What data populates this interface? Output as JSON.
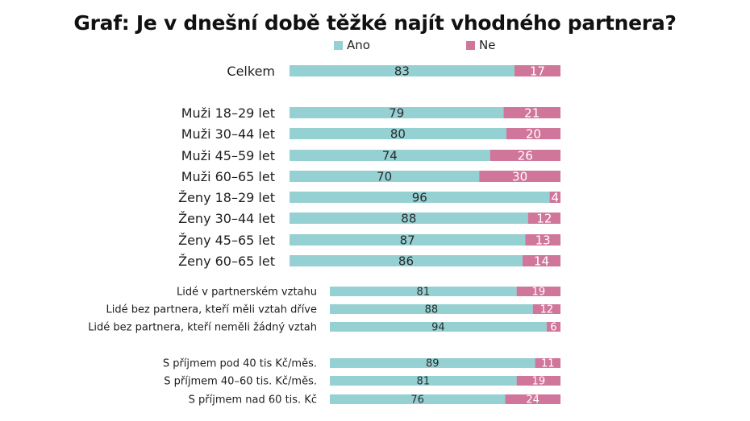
{
  "title": "Graf: Je v dnešní době těžké najít vhodného partnera?",
  "legend": [
    {
      "label": "Ano",
      "color": "#95d0d2"
    },
    {
      "label": "Ne",
      "color": "#d0769b"
    }
  ],
  "chart_data": {
    "type": "bar",
    "orientation": "horizontal",
    "stacked": true,
    "percent": true,
    "series": [
      {
        "name": "Ano",
        "color": "#95d0d2"
      },
      {
        "name": "Ne",
        "color": "#d0769b"
      }
    ],
    "groups": [
      {
        "rows": [
          {
            "label": "Celkem",
            "ano": 83,
            "ne": 17
          }
        ]
      },
      {
        "rows": [
          {
            "label": "Muži 18–29 let",
            "ano": 79,
            "ne": 21
          },
          {
            "label": "Muži 30–44 let",
            "ano": 80,
            "ne": 20
          },
          {
            "label": "Muži 45–59 let",
            "ano": 74,
            "ne": 26
          },
          {
            "label": "Muži 60–65 let",
            "ano": 70,
            "ne": 30
          },
          {
            "label": "Ženy 18–29 let",
            "ano": 96,
            "ne": 4
          },
          {
            "label": "Ženy 30–44 let",
            "ano": 88,
            "ne": 12
          },
          {
            "label": "Ženy 45–65 let",
            "ano": 87,
            "ne": 13
          },
          {
            "label": "Ženy 60–65 let",
            "ano": 86,
            "ne": 14
          }
        ]
      },
      {
        "rows": [
          {
            "label": "Lidé v partnerském vztahu",
            "ano": 81,
            "ne": 19
          },
          {
            "label": "Lidé bez partnera, kteří měli vztah dříve",
            "ano": 88,
            "ne": 12
          },
          {
            "label": "Lidé bez partnera, kteří neměli žádný vztah",
            "ano": 94,
            "ne": 6
          }
        ]
      },
      {
        "rows": [
          {
            "label": "S příjmem pod 40 tis Kč/měs.",
            "ano": 89,
            "ne": 11
          },
          {
            "label": "S příjmem 40–60 tis. Kč/měs.",
            "ano": 81,
            "ne": 19
          },
          {
            "label": "S příjmem nad 60 tis. Kč",
            "ano": 76,
            "ne": 24
          }
        ]
      }
    ]
  }
}
